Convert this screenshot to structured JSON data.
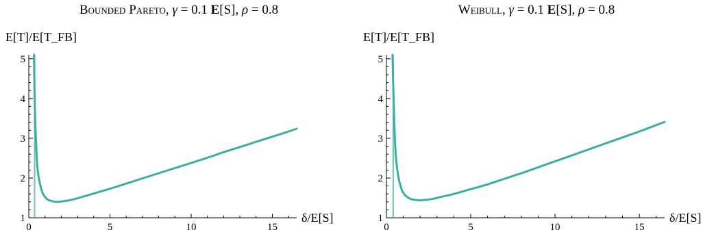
{
  "chart_data": [
    {
      "type": "line",
      "title_prefix": "Bounded Pareto",
      "title_params": [
        {
          "symbol": "γ",
          "value": "0.1",
          "unit_bold": "E",
          "unit_rest": "[S]"
        },
        {
          "symbol": "ρ",
          "value": "0.8"
        }
      ],
      "ylabel": "E[T]/E[T_FB]",
      "xlabel": "δ/E[S]",
      "xlim": [
        0,
        16.5
      ],
      "ylim": [
        1,
        5.1
      ],
      "xticks": [
        0,
        5,
        10,
        15
      ],
      "yticks": [
        1,
        2,
        3,
        4,
        5
      ],
      "vertical_line_x": 0.36,
      "color": "#3aaf9d",
      "series": [
        {
          "x": [
            0.32,
            0.35,
            0.4,
            0.5,
            0.6,
            0.8,
            1.0,
            1.2,
            1.5,
            1.7,
            2.0,
            2.5,
            3,
            4,
            5,
            6,
            7,
            8,
            9,
            10,
            11,
            12,
            13,
            14,
            15,
            16,
            16.5
          ],
          "y": [
            5.1,
            4.3,
            3.4,
            2.45,
            2.05,
            1.68,
            1.52,
            1.45,
            1.41,
            1.4,
            1.41,
            1.44,
            1.49,
            1.61,
            1.73,
            1.86,
            1.99,
            2.12,
            2.25,
            2.38,
            2.51,
            2.65,
            2.78,
            2.91,
            3.04,
            3.17,
            3.24
          ]
        }
      ]
    },
    {
      "type": "line",
      "title_prefix": "Weibull",
      "title_params": [
        {
          "symbol": "γ",
          "value": "0.1",
          "unit_bold": "E",
          "unit_rest": "[S]"
        },
        {
          "symbol": "ρ",
          "value": "0.8"
        }
      ],
      "ylabel": "E[T]/E[T_FB]",
      "xlabel": "δ/E[S]",
      "xlim": [
        0,
        16.5
      ],
      "ylim": [
        1,
        5.1
      ],
      "xticks": [
        0,
        5,
        10,
        15
      ],
      "yticks": [
        1,
        2,
        3,
        4,
        5
      ],
      "vertical_line_x": 0.4,
      "color": "#3aaf9d",
      "series": [
        {
          "x": [
            0.36,
            0.4,
            0.45,
            0.55,
            0.7,
            0.9,
            1.1,
            1.4,
            1.7,
            2.0,
            2.3,
            2.7,
            3,
            4,
            5,
            6,
            7,
            8,
            9,
            10,
            11,
            12,
            13,
            14,
            15,
            16,
            16.5
          ],
          "y": [
            5.1,
            4.4,
            3.6,
            2.6,
            2.05,
            1.72,
            1.57,
            1.48,
            1.45,
            1.44,
            1.45,
            1.47,
            1.5,
            1.6,
            1.72,
            1.84,
            1.98,
            2.12,
            2.27,
            2.42,
            2.57,
            2.72,
            2.87,
            3.02,
            3.17,
            3.33,
            3.41
          ]
        }
      ]
    }
  ]
}
